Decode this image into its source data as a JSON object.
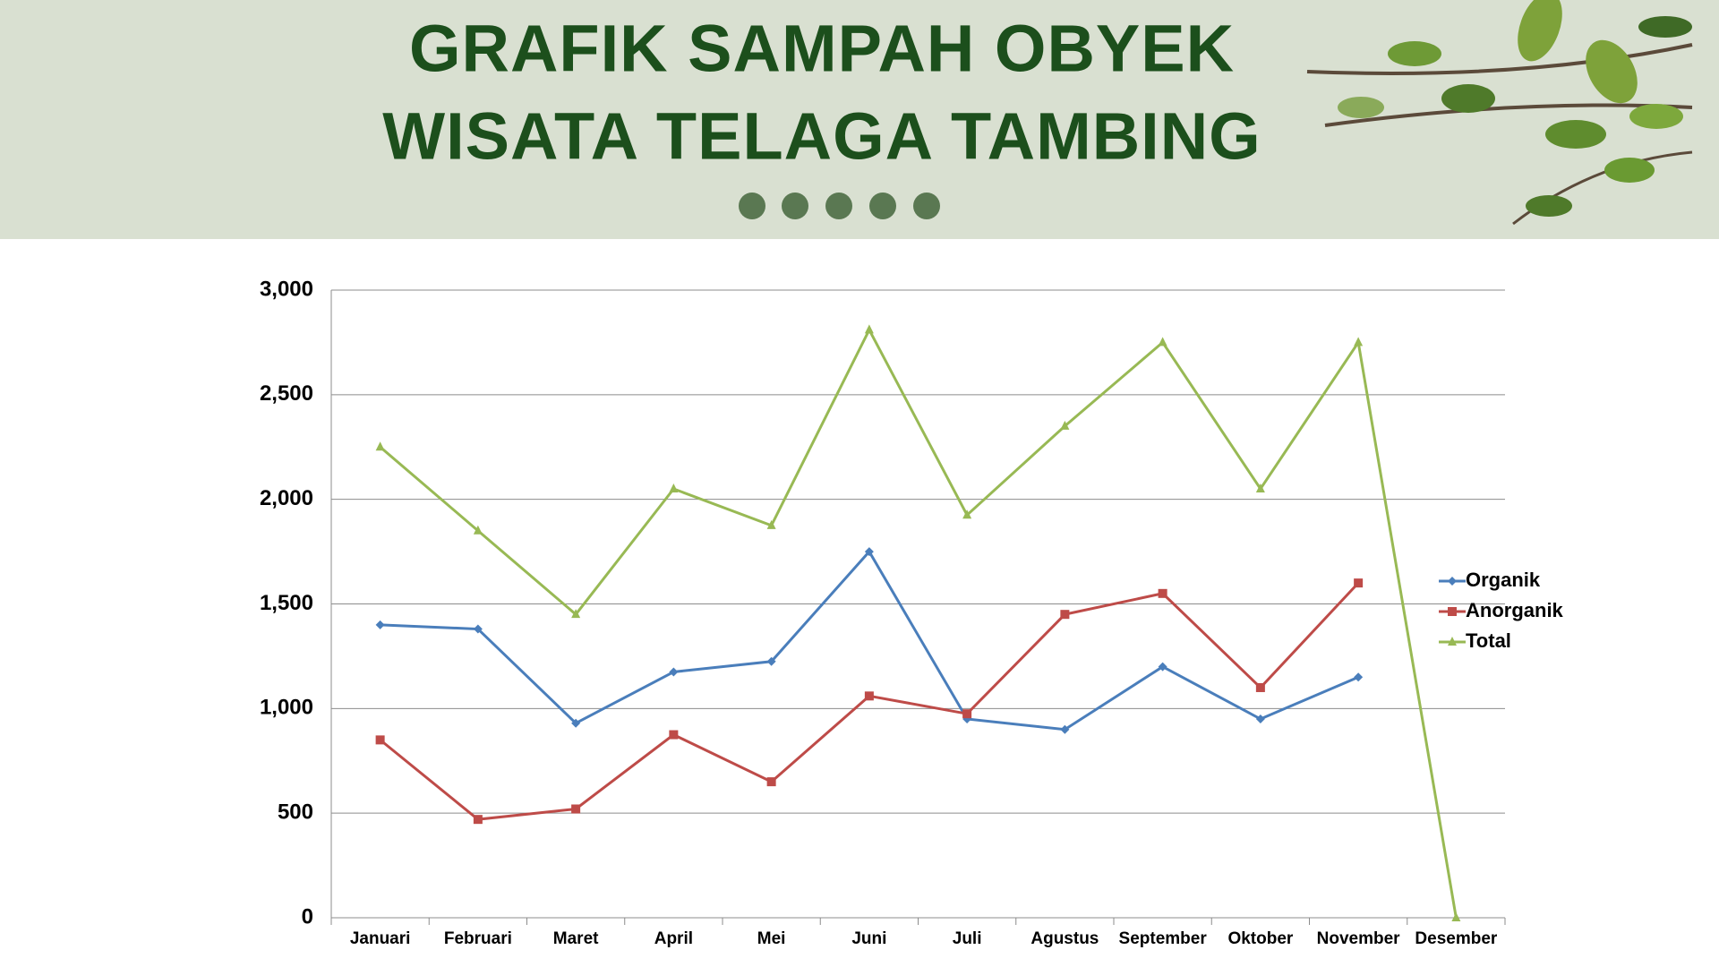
{
  "chart_data": {
    "type": "line",
    "title": [
      "GRAFIK SAMPAH OBYEK",
      "WISATA TELAGA TAMBING"
    ],
    "categories": [
      "Januari",
      "Februari",
      "Maret",
      "April",
      "Mei",
      "Juni",
      "Juli",
      "Agustus",
      "September",
      "Oktober",
      "November",
      "Desember"
    ],
    "series": [
      {
        "name": "Organik",
        "color": "#4a7ebb",
        "marker": "diamond",
        "values": [
          1400,
          1380,
          930,
          1175,
          1225,
          1750,
          950,
          900,
          1200,
          950,
          1150,
          null
        ]
      },
      {
        "name": "Anorganik",
        "color": "#be4b48",
        "marker": "square",
        "values": [
          850,
          470,
          520,
          875,
          650,
          1060,
          975,
          1450,
          1550,
          1100,
          1600,
          null
        ]
      },
      {
        "name": "Total",
        "color": "#98b954",
        "marker": "triangle",
        "values": [
          2250,
          1850,
          1450,
          2050,
          1875,
          2810,
          1925,
          2350,
          2750,
          2050,
          2750,
          0
        ]
      }
    ],
    "ylim": [
      0,
      3000
    ],
    "yticks": [
      0,
      500,
      {
        "value": 1000,
        "label": "1,000"
      },
      {
        "value": 1500,
        "label": "1,500"
      },
      {
        "value": 2000,
        "label": "2,000"
      },
      {
        "value": 2500,
        "label": "2,500"
      },
      {
        "value": 3000,
        "label": "3,000"
      }
    ],
    "grid": true,
    "legend": "right"
  }
}
